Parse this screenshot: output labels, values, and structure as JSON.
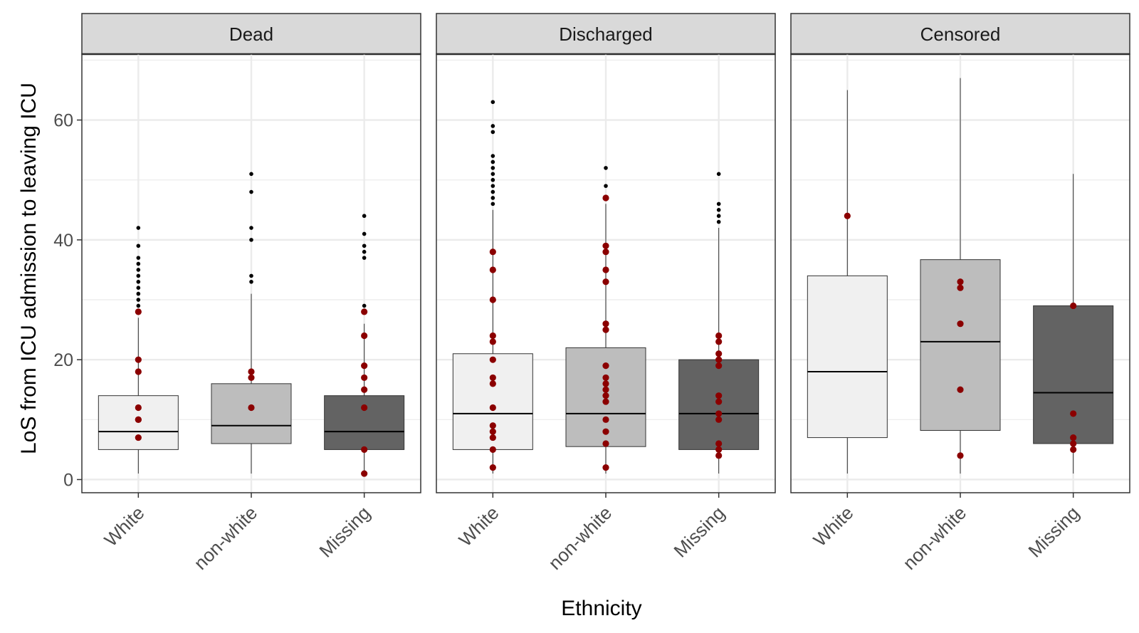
{
  "chart_data": {
    "type": "box",
    "ylabel": "LoS from ICU admission to leaving ICU",
    "xlabel": "Ethnicity",
    "ylim": [
      -2.2,
      71
    ],
    "y_ticks": [
      0,
      20,
      40,
      60
    ],
    "y_tick_labels": [
      "0",
      "20",
      "40",
      "60"
    ],
    "y_minor_ticks": [
      10,
      30,
      50,
      70
    ],
    "categories": [
      "White",
      "non-white",
      "Missing"
    ],
    "grid": true,
    "colors": {
      "fills": [
        "#f0f0f0",
        "#bdbdbd",
        "#636363"
      ],
      "outlier": "#000000",
      "point": "#8b0000",
      "strip": "#d9d9d9"
    },
    "panels": [
      {
        "title": "Dead",
        "boxes": [
          {
            "category": "White",
            "whisker_low": 1,
            "q1": 5,
            "median": 8,
            "q3": 14,
            "whisker_high": 27,
            "outliers": [
              29,
              30,
              31,
              32,
              33,
              34,
              35,
              36,
              37,
              39,
              42
            ],
            "points": [
              7,
              10,
              10,
              12,
              18,
              20,
              28
            ]
          },
          {
            "category": "non-white",
            "whisker_low": 1,
            "q1": 6,
            "median": 9,
            "q3": 16,
            "whisker_high": 31,
            "outliers": [
              33,
              34,
              40,
              42,
              48,
              51
            ],
            "points": [
              12,
              17,
              18
            ]
          },
          {
            "category": "Missing",
            "whisker_low": 1,
            "q1": 5,
            "median": 8,
            "q3": 14,
            "whisker_high": 26,
            "outliers": [
              29,
              37,
              38,
              39,
              41,
              44
            ],
            "points": [
              1,
              5,
              12,
              15,
              17,
              19,
              24,
              28
            ]
          }
        ]
      },
      {
        "title": "Discharged",
        "boxes": [
          {
            "category": "White",
            "whisker_low": 1,
            "q1": 5,
            "median": 11,
            "q3": 21,
            "whisker_high": 45,
            "outliers": [
              46,
              47,
              48,
              49,
              50,
              51,
              52,
              53,
              54,
              58,
              59,
              63
            ],
            "points": [
              2,
              5,
              7,
              8,
              9,
              12,
              16,
              17,
              20,
              23,
              24,
              30,
              35,
              38
            ]
          },
          {
            "category": "non-white",
            "whisker_low": 1,
            "q1": 5.5,
            "median": 11,
            "q3": 22,
            "whisker_high": 46,
            "outliers": [
              49,
              52
            ],
            "points": [
              2,
              6,
              8,
              10,
              13,
              14,
              15,
              16,
              17,
              19,
              25,
              26,
              33,
              35,
              38,
              39,
              47
            ]
          },
          {
            "category": "Missing",
            "whisker_low": 1,
            "q1": 5,
            "median": 11,
            "q3": 20,
            "whisker_high": 42,
            "outliers": [
              43,
              44,
              45,
              46,
              51
            ],
            "points": [
              4,
              5,
              6,
              10,
              11,
              13,
              14,
              19,
              20,
              21,
              23,
              24
            ]
          }
        ]
      },
      {
        "title": "Censored",
        "boxes": [
          {
            "category": "White",
            "whisker_low": 1,
            "q1": 7,
            "median": 18,
            "q3": 34,
            "whisker_high": 65,
            "outliers": [],
            "points": [
              44
            ]
          },
          {
            "category": "non-white",
            "whisker_low": 1,
            "q1": 8.2,
            "median": 23,
            "q3": 36.7,
            "whisker_high": 67,
            "outliers": [],
            "points": [
              4,
              15,
              26,
              32,
              33
            ]
          },
          {
            "category": "Missing",
            "whisker_low": 1,
            "q1": 6,
            "median": 14.5,
            "q3": 29,
            "whisker_high": 51,
            "outliers": [],
            "points": [
              5,
              6,
              7,
              11,
              29
            ]
          }
        ]
      }
    ]
  }
}
